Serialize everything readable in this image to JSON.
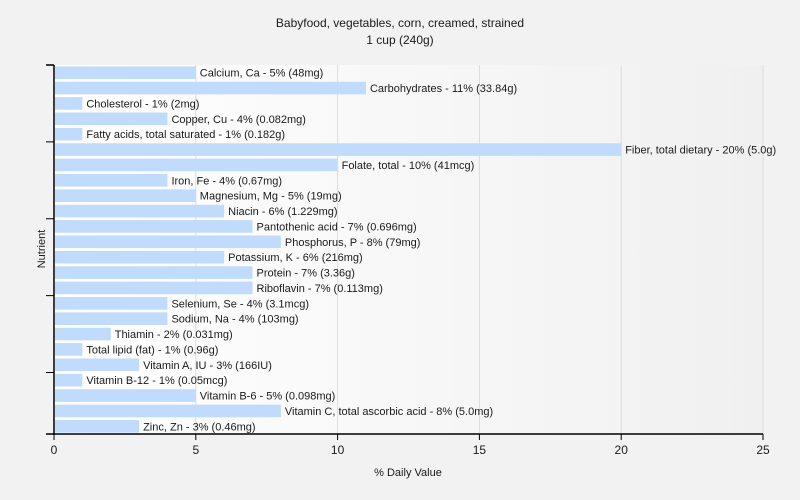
{
  "chart_data": {
    "type": "bar",
    "orientation": "horizontal",
    "title": "Babyfood, vegetables, corn, creamed, strained",
    "subtitle": "1 cup (240g)",
    "xlabel": "% Daily Value",
    "ylabel": "Nutrient",
    "xlim": [
      0,
      25
    ],
    "xticks": [
      0,
      5,
      10,
      15,
      20,
      25
    ],
    "grid": "vertical",
    "legend": "none",
    "bar_color": "#c0dbfb",
    "categories": [
      "Calcium, Ca",
      "Carbohydrates",
      "Cholesterol",
      "Copper, Cu",
      "Fatty acids, total saturated",
      "Fiber, total dietary",
      "Folate, total",
      "Iron, Fe",
      "Magnesium, Mg",
      "Niacin",
      "Pantothenic acid",
      "Phosphorus, P",
      "Potassium, K",
      "Protein",
      "Riboflavin",
      "Selenium, Se",
      "Sodium, Na",
      "Thiamin",
      "Total lipid (fat)",
      "Vitamin A, IU",
      "Vitamin B-12",
      "Vitamin B-6",
      "Vitamin C, total ascorbic acid",
      "Zinc, Zn"
    ],
    "values": [
      5,
      11,
      1,
      4,
      1,
      20,
      10,
      4,
      5,
      6,
      7,
      8,
      6,
      7,
      7,
      4,
      4,
      2,
      1,
      3,
      1,
      5,
      8,
      3
    ],
    "amounts": [
      "48mg",
      "33.84g",
      "2mg",
      "0.082mg",
      "0.182g",
      "5.0g",
      "41mcg",
      "0.67mg",
      "19mg",
      "1.229mg",
      "0.696mg",
      "79mg",
      "216mg",
      "3.36g",
      "0.113mg",
      "3.1mcg",
      "103mg",
      "0.031mg",
      "0.96g",
      "166IU",
      "0.05mcg",
      "0.098mg",
      "5.0mg",
      "0.46mg"
    ],
    "labels": [
      "Calcium, Ca - 5% (48mg)",
      "Carbohydrates - 11% (33.84g)",
      "Cholesterol - 1% (2mg)",
      "Copper, Cu - 4% (0.082mg)",
      "Fatty acids, total saturated - 1% (0.182g)",
      "Fiber, total dietary - 20% (5.0g)",
      "Folate, total - 10% (41mcg)",
      "Iron, Fe - 4% (0.67mg)",
      "Magnesium, Mg - 5% (19mg)",
      "Niacin - 6% (1.229mg)",
      "Pantothenic acid - 7% (0.696mg)",
      "Phosphorus, P - 8% (79mg)",
      "Potassium, K - 6% (216mg)",
      "Protein - 7% (3.36g)",
      "Riboflavin - 7% (0.113mg)",
      "Selenium, Se - 4% (3.1mcg)",
      "Sodium, Na - 4% (103mg)",
      "Thiamin - 2% (0.031mg)",
      "Total lipid (fat) - 1% (0.96g)",
      "Vitamin A, IU - 3% (166IU)",
      "Vitamin B-12 - 1% (0.05mcg)",
      "Vitamin B-6 - 5% (0.098mg)",
      "Vitamin C, total ascorbic acid - 8% (5.0mg)",
      "Zinc, Zn - 3% (0.46mg)"
    ]
  }
}
